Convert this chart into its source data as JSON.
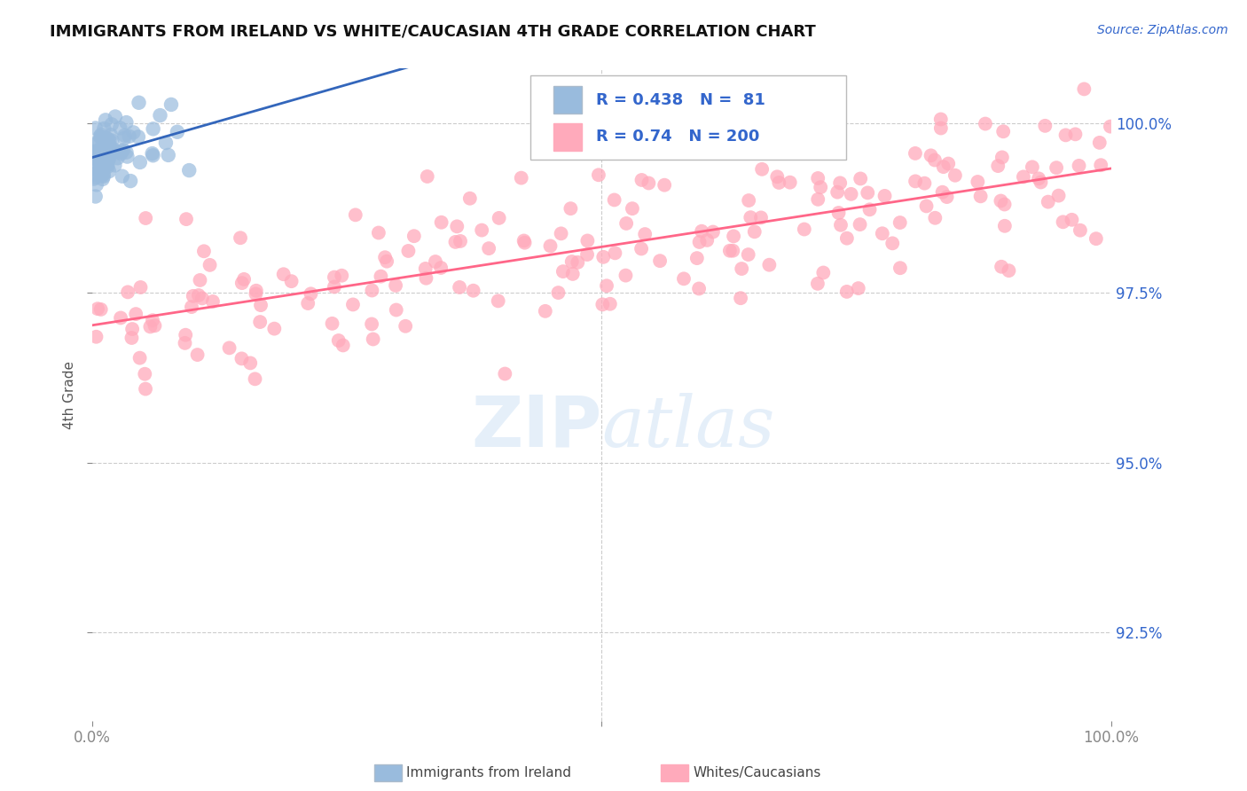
{
  "title": "IMMIGRANTS FROM IRELAND VS WHITE/CAUCASIAN 4TH GRADE CORRELATION CHART",
  "source": "Source: ZipAtlas.com",
  "ylabel": "4th Grade",
  "xlim": [
    0.0,
    100.0
  ],
  "ylim": [
    91.2,
    100.8
  ],
  "yticks": [
    92.5,
    95.0,
    97.5,
    100.0
  ],
  "ytick_labels": [
    "92.5%",
    "95.0%",
    "97.5%",
    "100.0%"
  ],
  "xtick_labels_left": "0.0%",
  "xtick_labels_right": "100.0%",
  "blue_R": 0.438,
  "blue_N": 81,
  "pink_R": 0.74,
  "pink_N": 200,
  "blue_color": "#99BBDD",
  "blue_edge_color": "#88AACC",
  "pink_color": "#FFAABB",
  "pink_edge_color": "#FFAABB",
  "blue_line_color": "#3366BB",
  "pink_line_color": "#FF6688",
  "legend_label_blue": "Immigrants from Ireland",
  "legend_label_pink": "Whites/Caucasians",
  "watermark_zip": "ZIP",
  "watermark_atlas": "atlas",
  "background_color": "#ffffff",
  "grid_color": "#cccccc",
  "title_color": "#111111",
  "axis_label_color": "#555555",
  "legend_R_N_color": "#3366CC",
  "source_color": "#3366CC"
}
